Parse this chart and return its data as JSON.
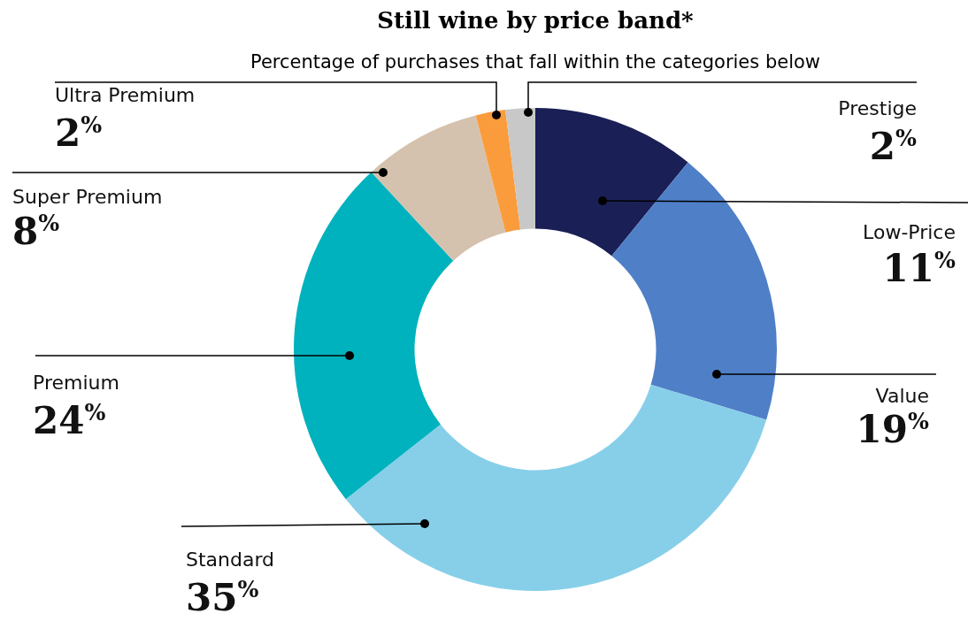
{
  "chart_data": {
    "type": "donut",
    "title": "Still wine by price band*",
    "subtitle": "Percentage of purchases that fall within the categories below",
    "categories": [
      "Low-Price",
      "Value",
      "Standard",
      "Premium",
      "Super Premium",
      "Ultra Premium",
      "Prestige"
    ],
    "values": [
      11,
      19,
      35,
      24,
      8,
      2,
      2
    ],
    "colors": [
      "#1a1f55",
      "#4f7fc7",
      "#87cfe9",
      "#00b2bd",
      "#d5c2ae",
      "#fa9c3b",
      "#c8c8c8"
    ],
    "value_labels": [
      "11$^{%}$",
      "19$^{%}$",
      "35$^{%}$",
      "24$^{%}$",
      "8$^{%}$",
      "2$^{%}$",
      "2$^{%}$"
    ]
  }
}
